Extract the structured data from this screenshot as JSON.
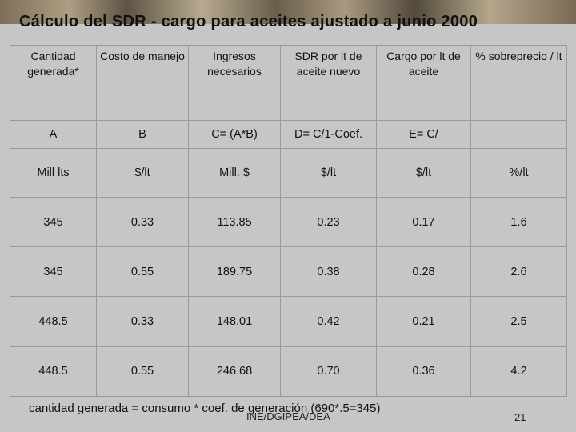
{
  "slide": {
    "title": "Cálculo del SDR - cargo para aceites ajustado a junio 2000",
    "headers": [
      "Cantidad generada*",
      "Costo de manejo",
      "Ingresos necesarios",
      "SDR por lt de aceite nuevo",
      "Cargo por lt de aceite",
      "% sobreprecio / lt"
    ],
    "formulas": [
      "A",
      "B",
      "C= (A*B)",
      "D= C/1-Coef.",
      "E= C/",
      ""
    ],
    "units": [
      "Mill lts",
      "$/lt",
      "Mill. $",
      "$/lt",
      "$/lt",
      "%/lt"
    ],
    "rows": [
      [
        "345",
        "0.33",
        "113.85",
        "0.23",
        "0.17",
        "1.6"
      ],
      [
        "345",
        "0.55",
        "189.75",
        "0.38",
        "0.28",
        "2.6"
      ],
      [
        "448.5",
        "0.33",
        "148.01",
        "0.42",
        "0.21",
        "2.5"
      ],
      [
        "448.5",
        "0.55",
        "246.68",
        "0.70",
        "0.36",
        "4.2"
      ]
    ],
    "footnote": "cantidad generada = consumo * coef. de generación (690*.5=345)",
    "source": "INE/DGIPEA/DEA",
    "page_number": "21"
  }
}
